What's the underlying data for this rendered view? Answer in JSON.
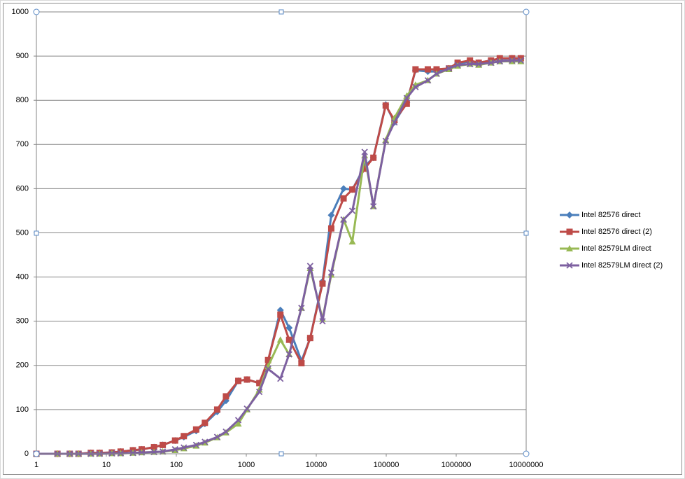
{
  "chart_data": {
    "type": "line",
    "log_x": true,
    "grid": true,
    "legend": "right",
    "x": [
      1,
      2,
      3,
      4,
      6,
      8,
      12,
      16,
      24,
      32,
      48,
      64,
      96,
      128,
      192,
      256,
      384,
      512,
      768,
      1024,
      1536,
      2048,
      3072,
      4096,
      6144,
      8192,
      12288,
      16384,
      24576,
      32768,
      49152,
      65536,
      98304,
      131072,
      196608,
      262144,
      393216,
      524288,
      786432,
      1048576,
      1572864,
      2097152,
      3145728,
      4194304,
      6291456,
      8388608
    ],
    "xlim": [
      1,
      10000000
    ],
    "xticks": [
      1,
      10,
      100,
      1000,
      10000,
      100000,
      1000000,
      10000000
    ],
    "ylim": [
      0,
      1000
    ],
    "yticks": [
      0,
      100,
      200,
      300,
      400,
      500,
      600,
      700,
      800,
      900,
      1000
    ],
    "series": [
      {
        "name": "Intel 82576 direct",
        "color": "#4a7ebb",
        "marker": "diamond",
        "values": [
          0,
          0,
          0,
          0,
          2,
          2,
          3,
          5,
          8,
          10,
          15,
          20,
          30,
          38,
          52,
          68,
          95,
          120,
          165,
          168,
          160,
          210,
          325,
          285,
          210,
          262,
          390,
          540,
          600,
          598,
          650,
          670,
          790,
          750,
          795,
          868,
          865,
          865,
          872,
          883,
          888,
          885,
          890,
          893,
          895,
          895
        ]
      },
      {
        "name": "Intel 82576 direct (2)",
        "color": "#be4b48",
        "marker": "square",
        "values": [
          0,
          0,
          0,
          0,
          2,
          2,
          3,
          5,
          8,
          10,
          15,
          20,
          30,
          40,
          55,
          70,
          100,
          130,
          165,
          168,
          160,
          212,
          315,
          258,
          205,
          262,
          385,
          510,
          578,
          598,
          645,
          670,
          788,
          755,
          792,
          870,
          870,
          870,
          872,
          885,
          890,
          885,
          890,
          895,
          895,
          895
        ]
      },
      {
        "name": "Intel 82579LM direct",
        "color": "#98b954",
        "marker": "triangle",
        "values": [
          0,
          0,
          0,
          0,
          0,
          0,
          1,
          1,
          2,
          3,
          4,
          5,
          8,
          12,
          18,
          25,
          37,
          48,
          68,
          100,
          145,
          198,
          258,
          225,
          330,
          420,
          305,
          405,
          530,
          480,
          675,
          560,
          710,
          760,
          810,
          835,
          845,
          860,
          870,
          878,
          882,
          880,
          885,
          888,
          888,
          888
        ]
      },
      {
        "name": "Intel 82579LM direct (2)",
        "color": "#7d60a0",
        "marker": "x",
        "values": [
          0,
          0,
          0,
          0,
          0,
          0,
          1,
          1,
          2,
          3,
          4,
          5,
          10,
          14,
          20,
          27,
          38,
          50,
          76,
          102,
          140,
          192,
          170,
          225,
          330,
          425,
          300,
          410,
          530,
          550,
          683,
          560,
          708,
          750,
          805,
          830,
          845,
          860,
          872,
          880,
          882,
          882,
          885,
          888,
          890,
          890
        ]
      }
    ]
  }
}
